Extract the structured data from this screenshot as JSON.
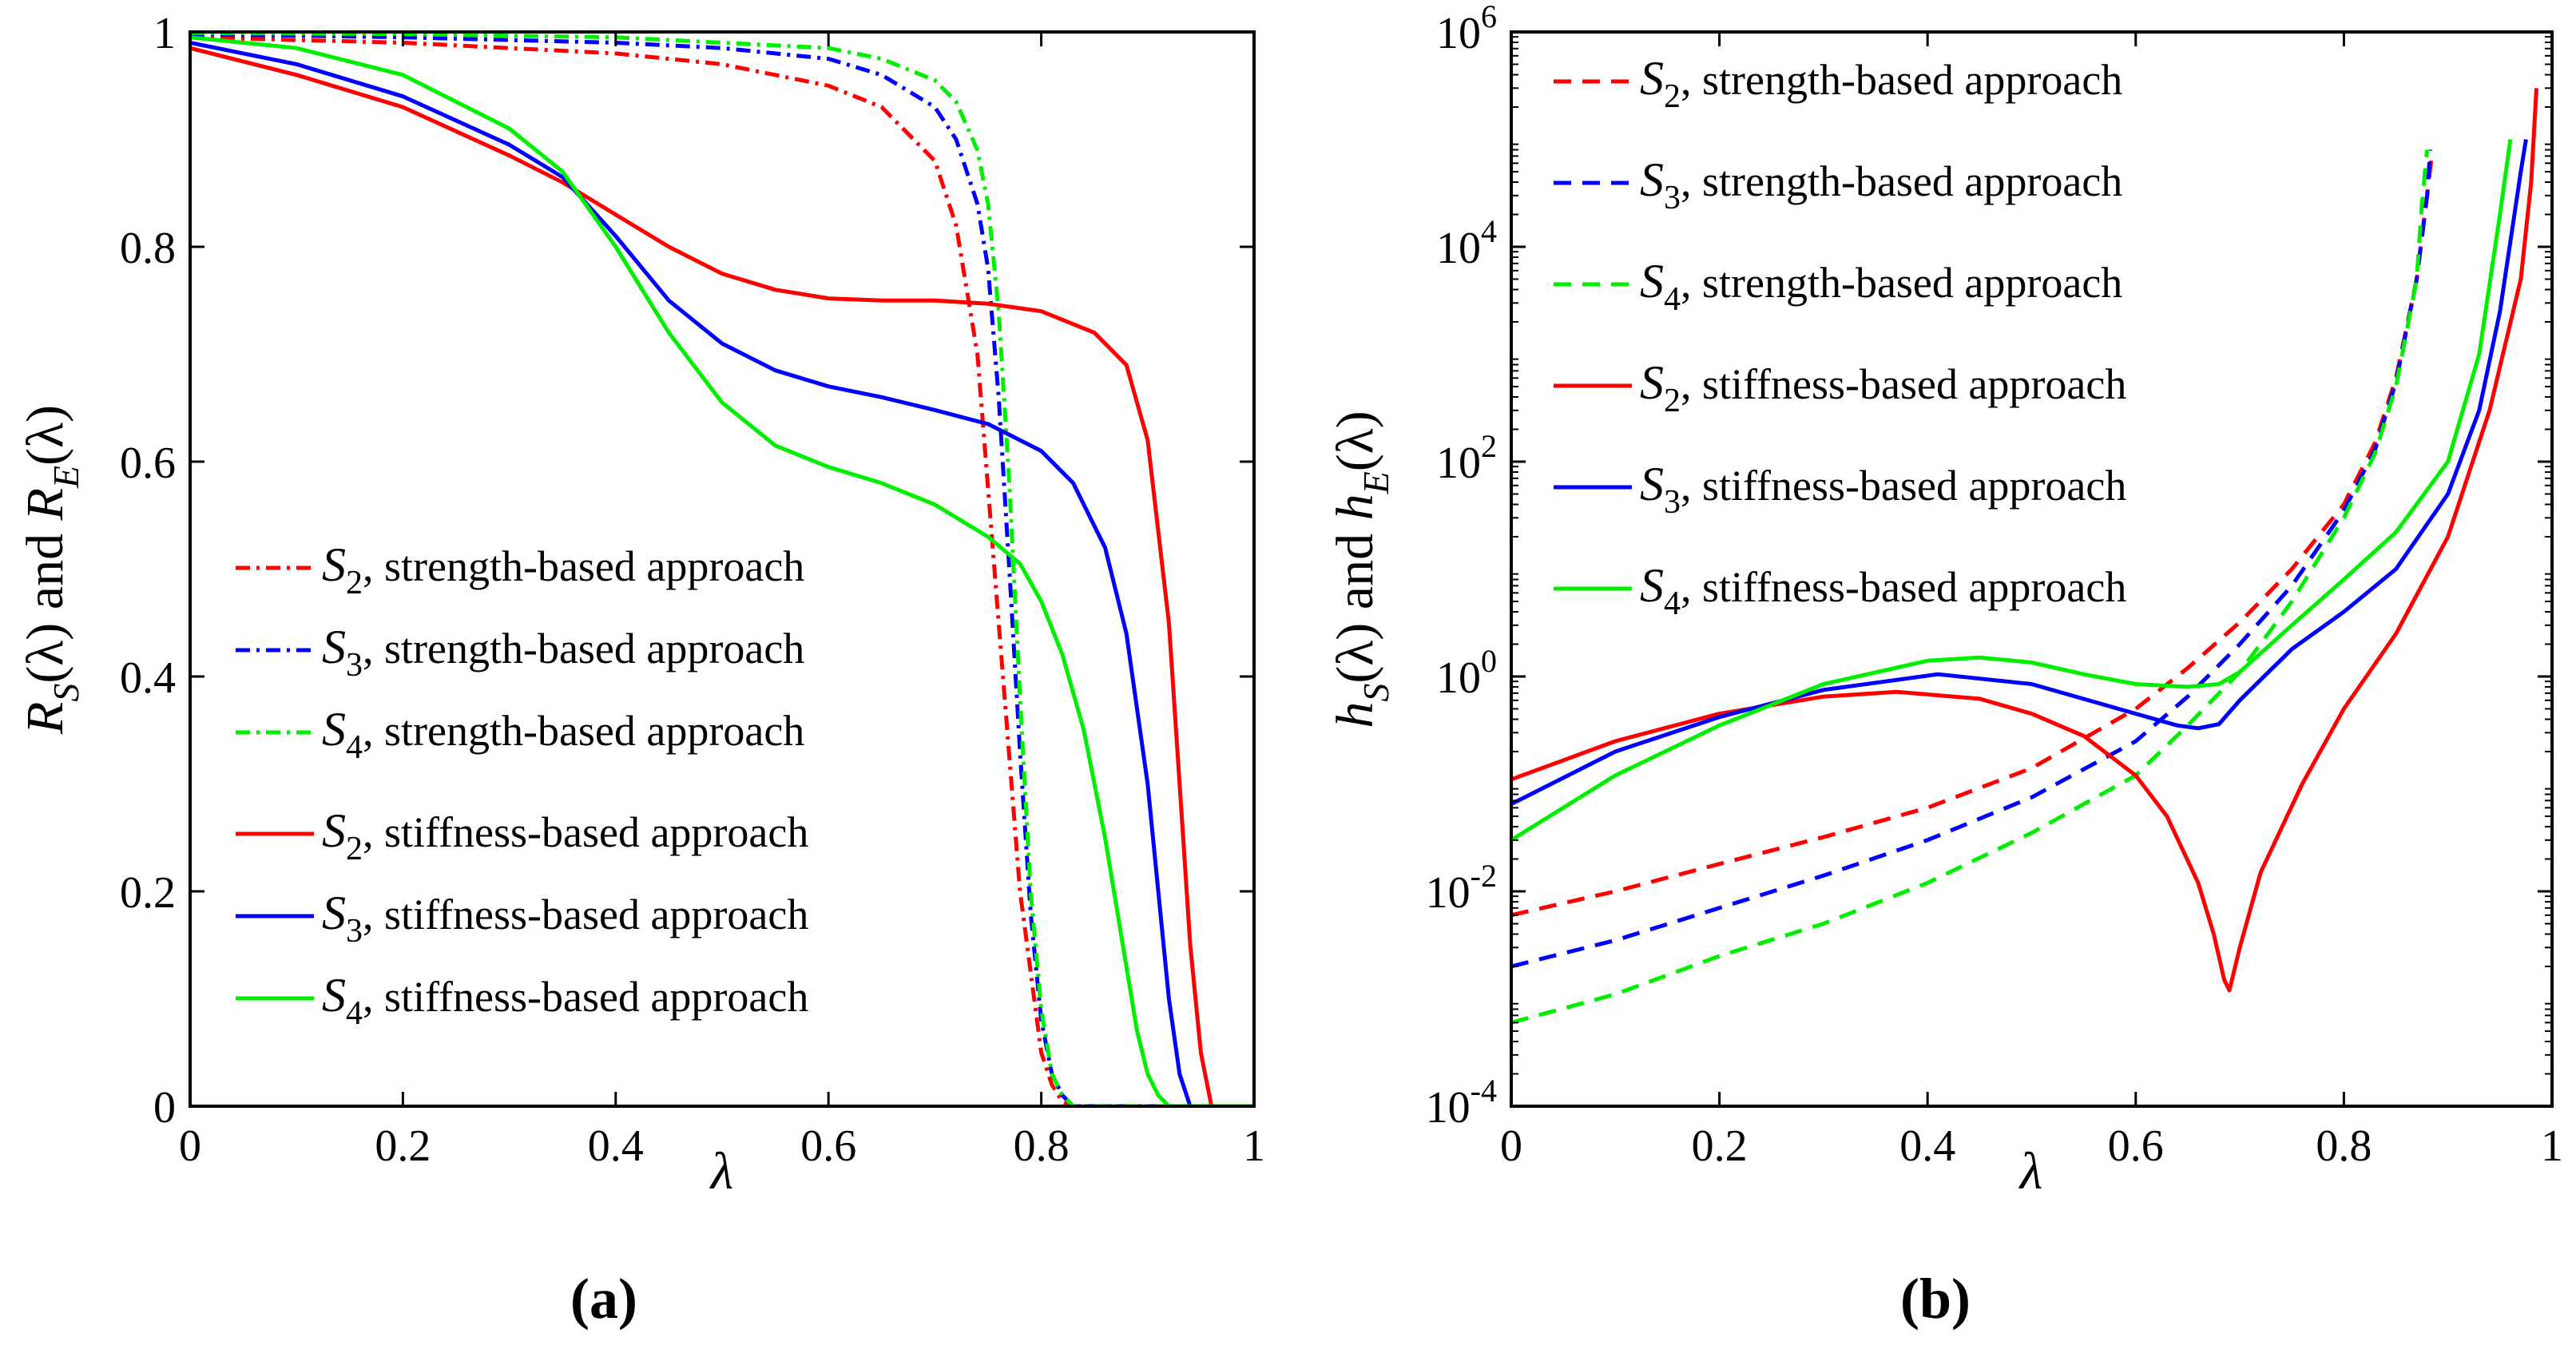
{
  "chart_data": [
    {
      "panel_label": "(a)",
      "type": "line",
      "xlabel": "λ",
      "ylabel": {
        "r1": "R",
        "sub1": "S",
        "arg1": "(λ)",
        "and": " and ",
        "r2": "R",
        "sub2": "E",
        "arg2": "(λ)"
      },
      "xlim": [
        0,
        1
      ],
      "ylim": [
        0,
        1
      ],
      "yscale": "linear",
      "xticks": [
        {
          "v": 0,
          "label": "0"
        },
        {
          "v": 0.2,
          "label": "0.2"
        },
        {
          "v": 0.4,
          "label": "0.4"
        },
        {
          "v": 0.6,
          "label": "0.6"
        },
        {
          "v": 0.8,
          "label": "0.8"
        },
        {
          "v": 1,
          "label": "1"
        }
      ],
      "yticks": [
        {
          "v": 0,
          "label": "0"
        },
        {
          "v": 0.2,
          "label": "0.2"
        },
        {
          "v": 0.4,
          "label": "0.4"
        },
        {
          "v": 0.6,
          "label": "0.6"
        },
        {
          "v": 0.8,
          "label": "0.8"
        },
        {
          "v": 1,
          "label": "1"
        }
      ],
      "legend_position": "left-center",
      "series": [
        {
          "name": "S2, strength-based approach",
          "sym": "S",
          "sub": "2",
          "desc": ", strength-based approach",
          "color": "#ff0000",
          "style": "dashdot",
          "x": [
            0,
            0.2,
            0.4,
            0.5,
            0.6,
            0.65,
            0.7,
            0.72,
            0.74,
            0.76,
            0.78,
            0.8,
            0.81,
            0.82,
            0.83,
            1
          ],
          "y": [
            0.995,
            0.99,
            0.98,
            0.97,
            0.95,
            0.93,
            0.88,
            0.82,
            0.7,
            0.45,
            0.2,
            0.05,
            0.02,
            0.004,
            0,
            0
          ]
        },
        {
          "name": "S3, strength-based approach",
          "sym": "S",
          "sub": "3",
          "desc": ", strength-based approach",
          "color": "#0000ff",
          "style": "dashdot",
          "x": [
            0,
            0.2,
            0.4,
            0.5,
            0.6,
            0.65,
            0.7,
            0.72,
            0.74,
            0.75,
            0.76,
            0.77,
            0.78,
            0.79,
            0.8,
            0.81,
            0.82,
            0.83,
            1
          ],
          "y": [
            0.998,
            0.995,
            0.99,
            0.985,
            0.975,
            0.96,
            0.93,
            0.9,
            0.84,
            0.78,
            0.66,
            0.5,
            0.33,
            0.18,
            0.08,
            0.03,
            0.01,
            0,
            0
          ]
        },
        {
          "name": "S4, strength-based approach",
          "sym": "S",
          "sub": "4",
          "desc": ", strength-based approach",
          "color": "#00ee00",
          "style": "dashdot",
          "x": [
            0,
            0.2,
            0.4,
            0.5,
            0.6,
            0.65,
            0.7,
            0.72,
            0.74,
            0.75,
            0.76,
            0.77,
            0.78,
            0.79,
            0.8,
            0.81,
            0.82,
            0.83,
            1
          ],
          "y": [
            0.999,
            0.998,
            0.995,
            0.99,
            0.985,
            0.975,
            0.955,
            0.935,
            0.89,
            0.84,
            0.74,
            0.58,
            0.38,
            0.2,
            0.09,
            0.03,
            0.01,
            0,
            0
          ]
        },
        {
          "name": "S2, stiffness-based approach",
          "sym": "S",
          "sub": "2",
          "desc": ", stiffness-based approach",
          "color": "#ff0000",
          "style": "solid",
          "x": [
            0,
            0.1,
            0.2,
            0.3,
            0.35,
            0.4,
            0.45,
            0.5,
            0.55,
            0.6,
            0.65,
            0.7,
            0.75,
            0.8,
            0.85,
            0.88,
            0.9,
            0.92,
            0.93,
            0.94,
            0.95,
            0.96,
            1
          ],
          "y": [
            0.985,
            0.96,
            0.93,
            0.885,
            0.86,
            0.83,
            0.8,
            0.775,
            0.76,
            0.752,
            0.75,
            0.75,
            0.747,
            0.74,
            0.72,
            0.69,
            0.62,
            0.45,
            0.3,
            0.15,
            0.05,
            0,
            0
          ]
        },
        {
          "name": "S3, stiffness-based approach",
          "sym": "S",
          "sub": "3",
          "desc": ", stiffness-based approach",
          "color": "#0000ff",
          "style": "solid",
          "x": [
            0,
            0.1,
            0.2,
            0.3,
            0.35,
            0.4,
            0.45,
            0.5,
            0.55,
            0.6,
            0.65,
            0.7,
            0.75,
            0.8,
            0.83,
            0.86,
            0.88,
            0.9,
            0.91,
            0.92,
            0.93,
            0.94,
            1
          ],
          "y": [
            0.99,
            0.97,
            0.94,
            0.895,
            0.865,
            0.81,
            0.75,
            0.71,
            0.685,
            0.67,
            0.66,
            0.648,
            0.635,
            0.61,
            0.58,
            0.52,
            0.44,
            0.3,
            0.2,
            0.1,
            0.03,
            0,
            0
          ]
        },
        {
          "name": "S4, stiffness-based approach",
          "sym": "S",
          "sub": "4",
          "desc": ", stiffness-based approach",
          "color": "#00ee00",
          "style": "solid",
          "x": [
            0,
            0.1,
            0.2,
            0.3,
            0.35,
            0.4,
            0.45,
            0.5,
            0.55,
            0.6,
            0.65,
            0.7,
            0.75,
            0.78,
            0.8,
            0.82,
            0.84,
            0.86,
            0.88,
            0.89,
            0.9,
            0.91,
            0.92,
            1
          ],
          "y": [
            0.995,
            0.985,
            0.96,
            0.91,
            0.87,
            0.8,
            0.72,
            0.655,
            0.615,
            0.595,
            0.58,
            0.56,
            0.53,
            0.505,
            0.47,
            0.42,
            0.35,
            0.25,
            0.13,
            0.07,
            0.03,
            0.01,
            0,
            0
          ]
        }
      ]
    },
    {
      "panel_label": "(b)",
      "type": "line",
      "xlabel": "λ",
      "ylabel": {
        "r1": "h",
        "sub1": "S",
        "arg1": "(λ)",
        "and": " and ",
        "r2": "h",
        "sub2": "E",
        "arg2": "(λ)"
      },
      "xlim": [
        0,
        1
      ],
      "ylim": [
        0.0001,
        1000000
      ],
      "yscale": "log",
      "xticks": [
        {
          "v": 0,
          "label": "0"
        },
        {
          "v": 0.2,
          "label": "0.2"
        },
        {
          "v": 0.4,
          "label": "0.4"
        },
        {
          "v": 0.6,
          "label": "0.6"
        },
        {
          "v": 0.8,
          "label": "0.8"
        },
        {
          "v": 1,
          "label": "1"
        }
      ],
      "yticks": [
        {
          "v": 0.0001,
          "base": "10",
          "exp": "-4"
        },
        {
          "v": 0.01,
          "base": "10",
          "exp": "-2"
        },
        {
          "v": 1,
          "base": "10",
          "exp": "0"
        },
        {
          "v": 100,
          "base": "10",
          "exp": "2"
        },
        {
          "v": 10000,
          "base": "10",
          "exp": "4"
        },
        {
          "v": 1000000,
          "base": "10",
          "exp": "6"
        }
      ],
      "legend_position": "top-left",
      "series": [
        {
          "name": "S2, strength-based approach",
          "sym": "S",
          "sub": "2",
          "desc": ", strength-based approach",
          "color": "#ff0000",
          "style": "dashed",
          "x": [
            0,
            0.1,
            0.2,
            0.3,
            0.4,
            0.5,
            0.6,
            0.65,
            0.7,
            0.75,
            0.8,
            0.83,
            0.85,
            0.87,
            0.88,
            0.885
          ],
          "y": [
            0.006,
            0.01,
            0.018,
            0.032,
            0.06,
            0.14,
            0.5,
            1.2,
            3.2,
            10,
            40,
            150,
            600,
            5000,
            30000,
            80000
          ]
        },
        {
          "name": "S3, strength-based approach",
          "sym": "S",
          "sub": "3",
          "desc": ", strength-based approach",
          "color": "#0000ff",
          "style": "dashed",
          "x": [
            0,
            0.1,
            0.2,
            0.3,
            0.4,
            0.5,
            0.6,
            0.65,
            0.7,
            0.75,
            0.8,
            0.83,
            0.85,
            0.87,
            0.88,
            0.883
          ],
          "y": [
            0.002,
            0.0035,
            0.007,
            0.014,
            0.03,
            0.075,
            0.25,
            0.65,
            2,
            7,
            35,
            130,
            550,
            5000,
            30000,
            80000
          ]
        },
        {
          "name": "S4, strength-based approach",
          "sym": "S",
          "sub": "4",
          "desc": ", strength-based approach",
          "color": "#00ee00",
          "style": "dashed",
          "x": [
            0,
            0.1,
            0.2,
            0.3,
            0.4,
            0.5,
            0.6,
            0.65,
            0.7,
            0.75,
            0.8,
            0.83,
            0.85,
            0.87,
            0.875,
            0.88
          ],
          "y": [
            0.0006,
            0.0011,
            0.0025,
            0.005,
            0.012,
            0.035,
            0.12,
            0.35,
            1.1,
            5,
            30,
            120,
            500,
            5000,
            25000,
            80000
          ]
        },
        {
          "name": "S2, stiffness-based approach",
          "sym": "S",
          "sub": "2",
          "desc": ", stiffness-based approach",
          "color": "#ff0000",
          "style": "solid",
          "x": [
            0,
            0.1,
            0.2,
            0.3,
            0.37,
            0.45,
            0.5,
            0.55,
            0.6,
            0.63,
            0.66,
            0.675,
            0.685,
            0.69,
            0.7,
            0.72,
            0.76,
            0.8,
            0.85,
            0.9,
            0.94,
            0.97,
            0.98,
            0.985
          ],
          "y": [
            0.11,
            0.25,
            0.45,
            0.65,
            0.72,
            0.62,
            0.45,
            0.28,
            0.12,
            0.05,
            0.012,
            0.004,
            0.0015,
            0.0012,
            0.003,
            0.015,
            0.1,
            0.5,
            2.5,
            20,
            300,
            5000,
            40000,
            300000
          ]
        },
        {
          "name": "S3, stiffness-based approach",
          "sym": "S",
          "sub": "3",
          "desc": ", stiffness-based approach",
          "color": "#0000ff",
          "style": "solid",
          "x": [
            0,
            0.1,
            0.2,
            0.3,
            0.41,
            0.5,
            0.6,
            0.64,
            0.66,
            0.68,
            0.7,
            0.75,
            0.8,
            0.85,
            0.9,
            0.93,
            0.95,
            0.97,
            0.975
          ],
          "y": [
            0.065,
            0.2,
            0.42,
            0.75,
            1.05,
            0.85,
            0.45,
            0.35,
            0.33,
            0.36,
            0.6,
            1.8,
            4,
            10,
            50,
            300,
            2500,
            50000,
            100000
          ]
        },
        {
          "name": "S4, stiffness-based approach",
          "sym": "S",
          "sub": "4",
          "desc": ", stiffness-based approach",
          "color": "#00ee00",
          "style": "solid",
          "x": [
            0,
            0.1,
            0.2,
            0.3,
            0.4,
            0.45,
            0.5,
            0.55,
            0.6,
            0.65,
            0.68,
            0.7,
            0.75,
            0.8,
            0.85,
            0.9,
            0.93,
            0.95,
            0.96
          ],
          "y": [
            0.03,
            0.12,
            0.35,
            0.85,
            1.4,
            1.5,
            1.35,
            1.05,
            0.85,
            0.8,
            0.85,
            1.1,
            3,
            8,
            22,
            100,
            1000,
            20000,
            100000
          ]
        }
      ]
    }
  ]
}
